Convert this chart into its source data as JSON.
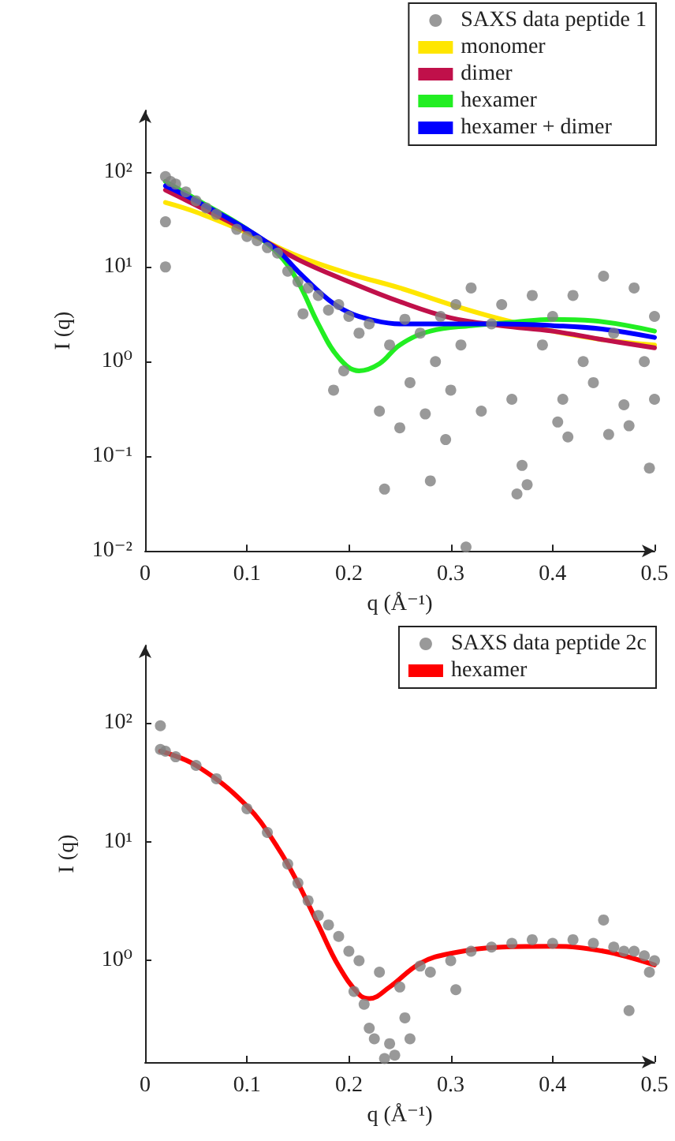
{
  "chart_data": [
    {
      "type": "line",
      "xlabel": "q (Å⁻¹)",
      "ylabel": "I (q)",
      "log": "y",
      "xlim": [
        0,
        0.5
      ],
      "xticks": [
        0,
        0.1,
        0.2,
        0.3,
        0.4,
        0.5
      ],
      "ylim": [
        0.01,
        450
      ],
      "yticks": [
        {
          "value": 0.01,
          "label": "10⁻²"
        },
        {
          "value": 0.1,
          "label": "10⁻¹"
        },
        {
          "value": 1,
          "label": "10⁰"
        },
        {
          "value": 10,
          "label": "10¹"
        },
        {
          "value": 100,
          "label": "10²"
        }
      ],
      "grid": false,
      "legend": "top right",
      "series": [
        {
          "name": "SAXS data peptide 1",
          "type": "scatter",
          "marker": "circle",
          "color": "#808080",
          "x": [
            0.02,
            0.02,
            0.02,
            0.025,
            0.03,
            0.04,
            0.05,
            0.06,
            0.07,
            0.09,
            0.1,
            0.11,
            0.12,
            0.13,
            0.14,
            0.15,
            0.155,
            0.16,
            0.17,
            0.18,
            0.185,
            0.19,
            0.195,
            0.2,
            0.21,
            0.22,
            0.23,
            0.235,
            0.24,
            0.25,
            0.255,
            0.26,
            0.27,
            0.275,
            0.28,
            0.285,
            0.29,
            0.295,
            0.3,
            0.305,
            0.31,
            0.315,
            0.32,
            0.33,
            0.34,
            0.35,
            0.36,
            0.365,
            0.37,
            0.375,
            0.38,
            0.39,
            0.4,
            0.405,
            0.41,
            0.415,
            0.42,
            0.43,
            0.44,
            0.45,
            0.455,
            0.46,
            0.47,
            0.475,
            0.48,
            0.49,
            0.495,
            0.5,
            0.5
          ],
          "values": [
            90,
            10,
            30,
            80,
            75,
            62,
            50,
            42,
            36,
            25,
            21,
            19,
            16,
            14,
            9,
            7,
            3.2,
            6,
            5,
            3.5,
            0.5,
            4,
            0.8,
            3,
            2,
            2.5,
            0.3,
            0.045,
            1.5,
            0.2,
            2.8,
            0.6,
            2,
            0.28,
            0.055,
            1,
            3,
            0.15,
            0.5,
            4,
            1.5,
            0.011,
            6,
            0.3,
            2.5,
            4,
            0.4,
            0.04,
            0.08,
            0.05,
            5,
            1.5,
            3,
            0.23,
            0.4,
            0.16,
            5,
            1,
            0.6,
            8,
            0.17,
            2,
            0.35,
            0.21,
            6,
            1,
            0.075,
            3,
            0.4
          ]
        },
        {
          "name": "monomer",
          "marker": "none",
          "color": "#ffe600",
          "x": [
            0.02,
            0.05,
            0.1,
            0.15,
            0.2,
            0.25,
            0.3,
            0.35,
            0.4,
            0.45,
            0.5
          ],
          "values": [
            48,
            38,
            23,
            13,
            8.5,
            6,
            4,
            2.8,
            2.1,
            1.7,
            1.5
          ]
        },
        {
          "name": "dimer",
          "marker": "none",
          "color": "#c0104a",
          "x": [
            0.02,
            0.05,
            0.1,
            0.15,
            0.2,
            0.25,
            0.3,
            0.35,
            0.4,
            0.45,
            0.5
          ],
          "values": [
            65,
            45,
            24,
            12,
            7,
            4.3,
            2.9,
            2.4,
            2.1,
            1.7,
            1.4
          ]
        },
        {
          "name": "hexamer",
          "marker": "none",
          "color": "#22ee22",
          "x": [
            0.02,
            0.05,
            0.1,
            0.13,
            0.15,
            0.17,
            0.19,
            0.21,
            0.23,
            0.25,
            0.28,
            0.32,
            0.36,
            0.4,
            0.44,
            0.5
          ],
          "values": [
            80,
            52,
            25,
            14,
            7,
            2.5,
            1.1,
            0.8,
            0.95,
            1.5,
            2.1,
            2.4,
            2.6,
            2.8,
            2.7,
            2.1
          ]
        },
        {
          "name": "hexamer + dimer",
          "marker": "none",
          "color": "#0000ff",
          "x": [
            0.02,
            0.05,
            0.1,
            0.13,
            0.15,
            0.18,
            0.2,
            0.22,
            0.25,
            0.3,
            0.35,
            0.4,
            0.45,
            0.5
          ],
          "values": [
            72,
            50,
            25,
            15,
            9,
            4.5,
            3.3,
            2.8,
            2.5,
            2.5,
            2.5,
            2.4,
            2.2,
            1.8
          ]
        }
      ]
    },
    {
      "type": "line",
      "xlabel": "q (Å⁻¹)",
      "ylabel": "I (q)",
      "log": "y",
      "xlim": [
        0,
        0.5
      ],
      "xticks": [
        0,
        0.1,
        0.2,
        0.3,
        0.4,
        0.5
      ],
      "ylim": [
        0.14,
        450
      ],
      "yticks": [
        {
          "value": 1,
          "label": "10⁰"
        },
        {
          "value": 10,
          "label": "10¹"
        },
        {
          "value": 100,
          "label": "10²"
        }
      ],
      "grid": false,
      "legend": "top right",
      "series": [
        {
          "name": "SAXS data peptide 2c",
          "type": "scatter",
          "marker": "circle",
          "color": "#808080",
          "x": [
            0.015,
            0.015,
            0.02,
            0.03,
            0.05,
            0.07,
            0.1,
            0.12,
            0.14,
            0.15,
            0.16,
            0.17,
            0.18,
            0.19,
            0.2,
            0.205,
            0.21,
            0.215,
            0.22,
            0.225,
            0.23,
            0.235,
            0.24,
            0.245,
            0.25,
            0.255,
            0.26,
            0.27,
            0.28,
            0.3,
            0.305,
            0.32,
            0.34,
            0.36,
            0.38,
            0.4,
            0.42,
            0.44,
            0.45,
            0.46,
            0.47,
            0.475,
            0.48,
            0.49,
            0.495,
            0.5
          ],
          "values": [
            95,
            60,
            58,
            52,
            44,
            34,
            19,
            12,
            6.5,
            4.5,
            3.2,
            2.4,
            2,
            1.6,
            1.2,
            0.55,
            1,
            0.43,
            0.27,
            0.22,
            0.8,
            0.15,
            0.2,
            0.16,
            0.6,
            0.33,
            0.22,
            0.9,
            0.8,
            1,
            0.57,
            1.2,
            1.3,
            1.4,
            1.5,
            1.4,
            1.5,
            1.4,
            2.2,
            1.3,
            1.2,
            0.38,
            1.2,
            1.1,
            0.8,
            1
          ]
        },
        {
          "name": "hexamer",
          "marker": "none",
          "color": "#ff0000",
          "x": [
            0.015,
            0.05,
            0.1,
            0.13,
            0.15,
            0.17,
            0.19,
            0.21,
            0.22,
            0.24,
            0.27,
            0.3,
            0.35,
            0.4,
            0.45,
            0.5
          ],
          "values": [
            58,
            44,
            20,
            9,
            4.5,
            2,
            0.9,
            0.52,
            0.48,
            0.6,
            0.95,
            1.15,
            1.3,
            1.32,
            1.2,
            0.92
          ]
        }
      ]
    }
  ]
}
